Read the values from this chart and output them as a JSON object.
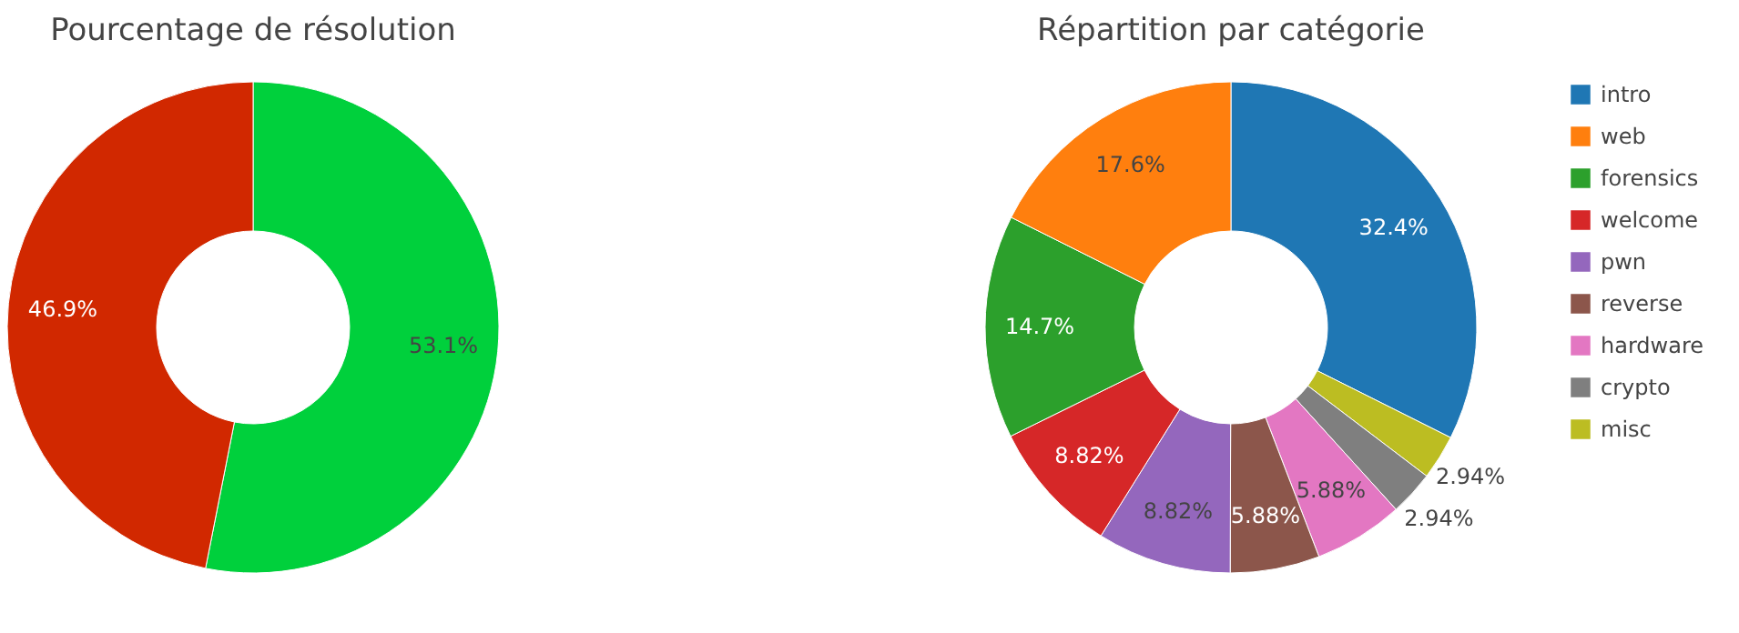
{
  "chart_data": [
    {
      "type": "donut",
      "title": "Pourcentage de résolution",
      "categories": [
        null,
        null
      ],
      "values": [
        53.1,
        46.9
      ],
      "colors": [
        "#00d03c",
        "#d12800"
      ],
      "value_labels": [
        "53.1%",
        "46.9%"
      ],
      "legend": false
    },
    {
      "type": "donut",
      "title": "Répartition par catégorie",
      "categories": [
        "intro",
        "web",
        "forensics",
        "welcome",
        "pwn",
        "reverse",
        "hardware",
        "crypto",
        "misc"
      ],
      "values": [
        32.4,
        17.6,
        14.7,
        8.82,
        8.82,
        5.88,
        5.88,
        2.94,
        2.94
      ],
      "colors": [
        "#1f77b4",
        "#ff7f0e",
        "#2ca02c",
        "#d62728",
        "#9467bd",
        "#8c564b",
        "#e377c2",
        "#7f7f7f",
        "#bcbd22"
      ],
      "value_labels": [
        "32.4%",
        "17.6%",
        "14.7%",
        "8.82%",
        "8.82%",
        "5.88%",
        "5.88%",
        "2.94%",
        "2.94%"
      ],
      "legend": "right"
    }
  ]
}
